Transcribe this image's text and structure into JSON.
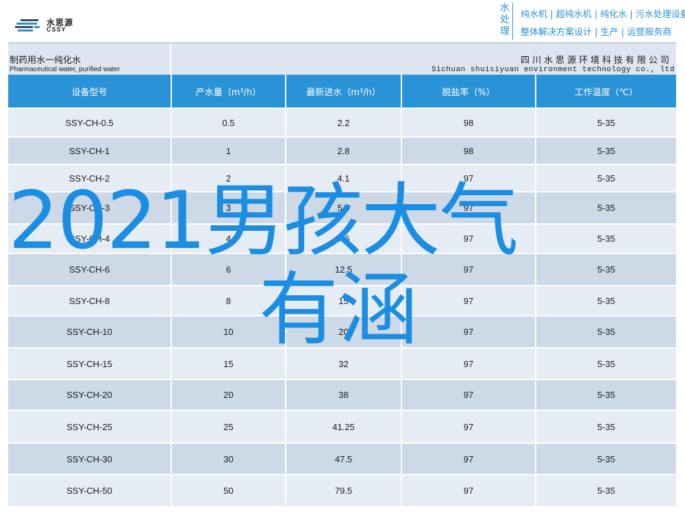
{
  "header": {
    "logo_name": "水思源",
    "logo_sub": "CSSY",
    "badge_chars": [
      "水",
      "处",
      "理"
    ],
    "tagline_1": "纯水机 | 超纯水机 | 纯化水 | 污水处理设备",
    "tagline_2": "整体解决方案设计 | 生产 | 运营服务商",
    "accent_color": "#2a8fd6"
  },
  "company": {
    "title_cn": "制药用水一纯化水",
    "title_en": "Pharmaceutical water, purified water",
    "name_cn": "四川水思源环境科技有限公司",
    "name_en": "Sichuan shuisiyuan environment technology co., ltd"
  },
  "table": {
    "headers": [
      "设备型号",
      "产水量（m³/h）",
      "最新进水（m³/h）",
      "脱盐率（%）",
      "工作温度（℃）"
    ],
    "rows": [
      [
        "SSY-CH-0.5",
        "0.5",
        "2.2",
        "98",
        "5-35"
      ],
      [
        "SSY-CH-1",
        "1",
        "2.8",
        "98",
        "5-35"
      ],
      [
        "SSY-CH-2",
        "2",
        "4.1",
        "97",
        "5-35"
      ],
      [
        "SSY-CH-3",
        "3",
        "5.5",
        "97",
        "5-35"
      ],
      [
        "SSY-CH-4",
        "4",
        "7.6",
        "97",
        "5-35"
      ],
      [
        "SSY-CH-6",
        "6",
        "12.5",
        "97",
        "5-35"
      ],
      [
        "SSY-CH-8",
        "8",
        "15",
        "97",
        "5-35"
      ],
      [
        "SSY-CH-10",
        "10",
        "20",
        "97",
        "5-35"
      ],
      [
        "SSY-CH-15",
        "15",
        "32",
        "97",
        "5-35"
      ],
      [
        "SSY-CH-20",
        "20",
        "38",
        "97",
        "5-35"
      ],
      [
        "SSY-CH-25",
        "25",
        "41.25",
        "97",
        "5-35"
      ],
      [
        "SSY-CH-30",
        "30",
        "47.5",
        "97",
        "5-35"
      ],
      [
        "SSY-CH-50",
        "50",
        "79.5",
        "97",
        "5-35"
      ]
    ],
    "header_color": "#2a93d8",
    "row_colors": [
      "#e6ecf3",
      "#cdd9e6"
    ]
  },
  "overlay": {
    "line1": "2021男孩大气",
    "line2": "有涵",
    "color": "#1b8de3"
  }
}
